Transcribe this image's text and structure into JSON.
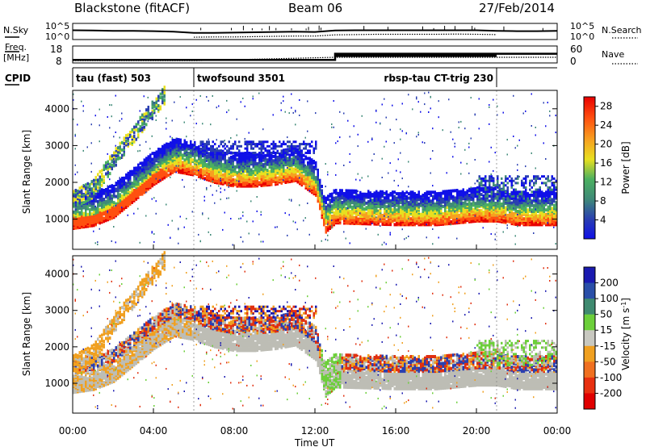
{
  "header": {
    "station": "Blackstone (fitACF)",
    "beam": "Beam 06",
    "date": "27/Feb/2014"
  },
  "panel_labels": {
    "nsky": "N.Sky",
    "nsearch": "N.Search",
    "freq_a": "Freq.",
    "freq_b": "[MHz]",
    "nave": "Nave",
    "cpid": "CPID"
  },
  "cpid_segments": [
    {
      "label": "tau (fast) 503",
      "start_hour": 0.0
    },
    {
      "label": "twofsound 3501",
      "start_hour": 6.0
    },
    {
      "label": "rbsp-tau CT-trig 230",
      "start_hour": 21.0
    }
  ],
  "chart_data": [
    {
      "type": "line",
      "name": "noise",
      "left_ticks": [
        "10^5",
        "10^0"
      ],
      "right_ticks": [
        "10^5",
        "10^0"
      ],
      "series": [
        {
          "name": "N.Sky",
          "x": [
            0,
            1,
            2,
            3,
            4,
            5,
            6,
            7,
            8,
            9,
            10,
            11,
            12,
            13,
            14,
            15,
            16,
            17,
            18,
            19,
            20,
            21,
            22,
            23,
            24
          ],
          "y": [
            3.2,
            3.1,
            3.0,
            3.0,
            2.9,
            2.7,
            2.3,
            2.3,
            2.4,
            2.5,
            2.6,
            2.7,
            2.6,
            3.1,
            3.2,
            3.2,
            3.2,
            3.2,
            3.2,
            3.2,
            3.2,
            3.0,
            2.9,
            2.9,
            3.0
          ]
        },
        {
          "name": "N.Search",
          "x": [
            6,
            7,
            8,
            9,
            10,
            11,
            12,
            13,
            14,
            15,
            16,
            17,
            18,
            19,
            20,
            21
          ],
          "y": [
            0.8,
            0.9,
            0.9,
            1.0,
            1.1,
            1.2,
            1.2,
            1.6,
            1.7,
            1.8,
            1.8,
            1.8,
            1.8,
            1.9,
            1.8,
            1.7
          ]
        }
      ]
    },
    {
      "type": "line",
      "name": "frequency",
      "left_ticks": [
        "18",
        "8"
      ],
      "right_ticks": [
        "60",
        "0"
      ],
      "series": [
        {
          "name": "Freq",
          "x": [
            0,
            6,
            13,
            21,
            24
          ],
          "y": [
            10.0,
            10.0,
            14.0,
            14.0,
            14.0
          ]
        },
        {
          "name": "Nave",
          "x": [
            0,
            6,
            13,
            21,
            24
          ],
          "y": [
            9,
            9,
            22,
            22,
            22
          ]
        }
      ]
    },
    {
      "type": "heatmap",
      "name": "power",
      "xlabel": "",
      "ylabel": "Slant Range [km]",
      "xlim": [
        0,
        24
      ],
      "ylim": [
        180,
        4500
      ],
      "y_ticks": [
        1000,
        2000,
        3000,
        4000
      ],
      "colorbar": {
        "label": "Power [dB]",
        "ticks": [
          4,
          8,
          12,
          16,
          20,
          24,
          28
        ],
        "range": [
          0,
          30
        ]
      },
      "features": {
        "lower_band_center_km": [
          [
            0,
            1000
          ],
          [
            1,
            1080
          ],
          [
            2,
            1300
          ],
          [
            3,
            1750
          ],
          [
            4,
            2200
          ],
          [
            5,
            2550
          ],
          [
            6,
            2450
          ],
          [
            7,
            2250
          ],
          [
            8,
            2150
          ],
          [
            9,
            2150
          ],
          [
            10,
            2200
          ],
          [
            11,
            2300
          ],
          [
            12,
            1900
          ],
          [
            12.5,
            900
          ],
          [
            13,
            1150
          ],
          [
            16,
            1100
          ],
          [
            18,
            1100
          ],
          [
            20,
            1200
          ],
          [
            21,
            1200
          ],
          [
            22,
            1100
          ],
          [
            24,
            1100
          ]
        ],
        "upper_band_center_km": [
          [
            0,
            1600
          ],
          [
            1,
            1900
          ],
          [
            2,
            2700
          ],
          [
            3,
            3400
          ],
          [
            4,
            4100
          ],
          [
            4.6,
            4500
          ]
        ]
      }
    },
    {
      "type": "heatmap",
      "name": "velocity",
      "xlabel": "Time UT",
      "ylabel": "Slant Range [km]",
      "xlim": [
        0,
        24
      ],
      "ylim": [
        180,
        4500
      ],
      "y_ticks": [
        1000,
        2000,
        3000,
        4000
      ],
      "colorbar": {
        "label": "Velocity [m s^-1]",
        "ticks": [
          200,
          100,
          50,
          15,
          -15,
          -50,
          -100,
          -200
        ]
      }
    }
  ],
  "x_ticks": [
    "00:00",
    "04:00",
    "08:00",
    "12:00",
    "16:00",
    "20:00",
    "00:00"
  ],
  "xlabel": "Time UT"
}
